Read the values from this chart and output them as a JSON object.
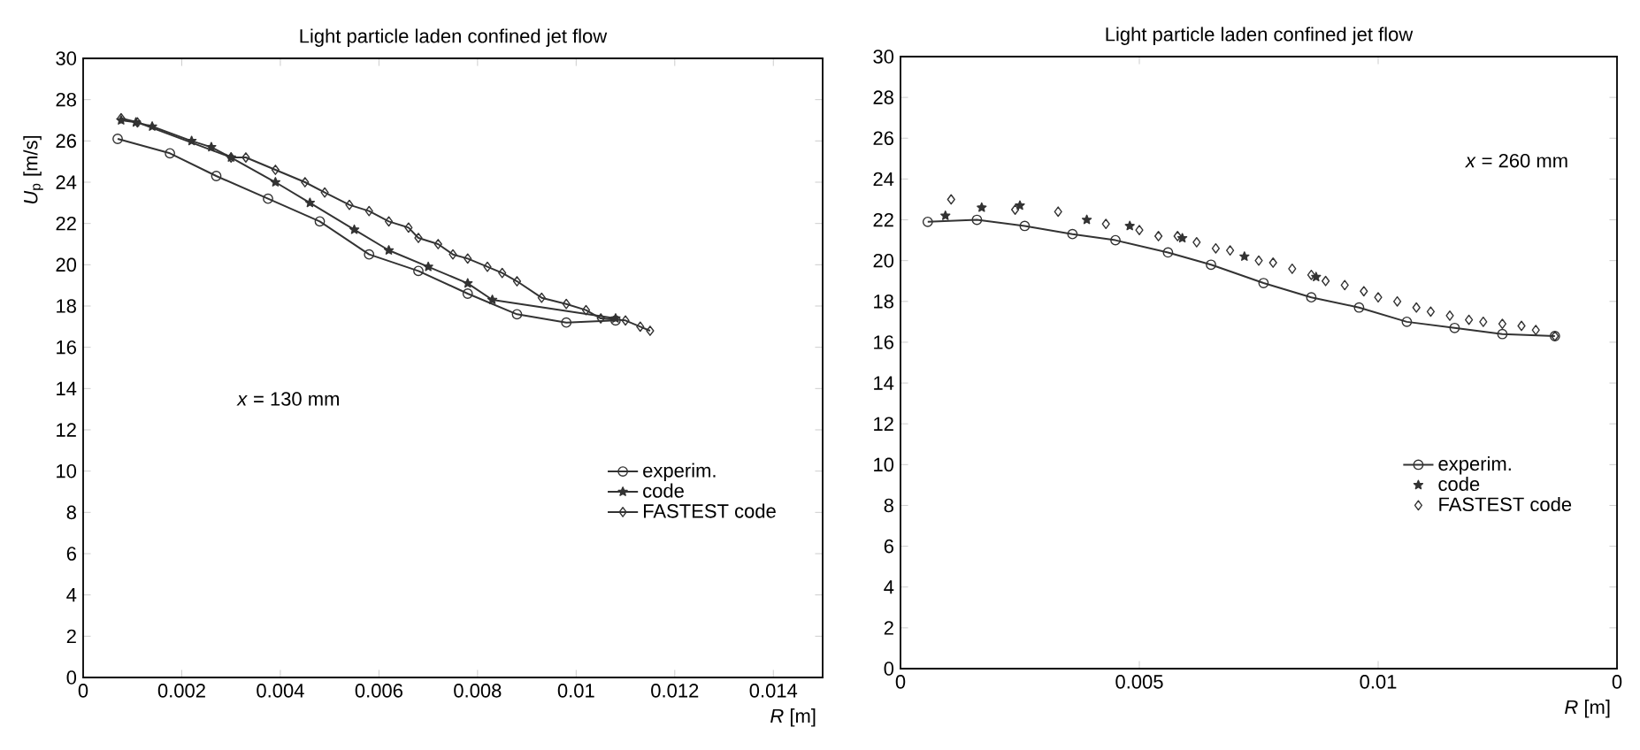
{
  "chart_data": [
    {
      "type": "line",
      "title": "Light particle laden confined jet flow",
      "xlabel": "*R* [m]",
      "ylabel": "*U*$_{p}$ [m/s]",
      "annotations": [
        "*x* = 130 mm"
      ],
      "xlim": [
        0,
        0.015
      ],
      "ylim": [
        0,
        30
      ],
      "xticks": [
        0,
        0.002,
        0.004,
        0.006,
        0.008,
        0.01,
        0.012,
        0.014
      ],
      "yticks": [
        0,
        2,
        4,
        6,
        8,
        10,
        12,
        14,
        16,
        18,
        20,
        22,
        24,
        26,
        28,
        30
      ],
      "legend": "center right",
      "series": [
        {
          "name": "experim.",
          "color": "#333333",
          "marker": "circle",
          "x": [
            0.0007,
            0.00176,
            0.0027,
            0.00375,
            0.0048,
            0.0058,
            0.0068,
            0.0078,
            0.0088,
            0.0098,
            0.0108
          ],
          "values": [
            26.1,
            25.4,
            24.3,
            23.2,
            22.1,
            20.5,
            19.7,
            18.6,
            17.6,
            17.2,
            17.3
          ]
        },
        {
          "name": "code",
          "color": "#333333",
          "marker": "star",
          "x": [
            0.00077,
            0.00107,
            0.0014,
            0.0022,
            0.0026,
            0.003,
            0.0039,
            0.0046,
            0.0055,
            0.0062,
            0.007,
            0.0078,
            0.0083,
            0.0108
          ],
          "values": [
            27.0,
            26.9,
            26.7,
            26.0,
            25.7,
            25.2,
            24.0,
            23.0,
            21.7,
            20.7,
            19.9,
            19.1,
            18.3,
            17.4
          ]
        },
        {
          "name": "FASTEST code",
          "color": "#333333",
          "marker": "diamond",
          "x": [
            0.00077,
            0.0011,
            0.003,
            0.0033,
            0.0039,
            0.0045,
            0.0049,
            0.0054,
            0.0058,
            0.0062,
            0.0066,
            0.0068,
            0.0072,
            0.0075,
            0.0078,
            0.0082,
            0.0085,
            0.0088,
            0.0093,
            0.0098,
            0.0102,
            0.0105,
            0.011,
            0.0113,
            0.0115
          ],
          "values": [
            27.1,
            26.9,
            25.2,
            25.2,
            24.6,
            24.0,
            23.5,
            22.9,
            22.6,
            22.1,
            21.8,
            21.3,
            21.0,
            20.5,
            20.3,
            19.9,
            19.6,
            19.2,
            18.4,
            18.1,
            17.8,
            17.4,
            17.3,
            17.0,
            16.8
          ]
        }
      ]
    },
    {
      "type": "line",
      "title": "Light particle laden confined jet flow",
      "xlabel": "*R* [m]",
      "annotations": [
        "*x* = 260 mm"
      ],
      "xlim": [
        0,
        0.015
      ],
      "ylim": [
        0,
        30
      ],
      "xticks": [
        0,
        0.005,
        0.01,
        {
          "value": 0.015,
          "label": "0"
        }
      ],
      "yticks": [
        0,
        2,
        4,
        6,
        8,
        10,
        12,
        14,
        16,
        18,
        20,
        22,
        24,
        26,
        28,
        30
      ],
      "legend": "center right",
      "series": [
        {
          "name": "experim.",
          "color": "#333333",
          "marker": "circle",
          "x": [
            0.00057,
            0.0016,
            0.0026,
            0.0036,
            0.0045,
            0.0056,
            0.0065,
            0.0076,
            0.0086,
            0.0096,
            0.0106,
            0.0116,
            0.0126,
            0.0137
          ],
          "values": [
            21.9,
            22.0,
            21.7,
            21.3,
            21.0,
            20.4,
            19.8,
            18.9,
            18.2,
            17.7,
            17.0,
            16.7,
            16.4,
            16.3
          ]
        },
        {
          "type": "scatter",
          "name": "code",
          "color": "#333333",
          "marker": "star",
          "x": [
            0.00094,
            0.0017,
            0.0025,
            0.0039,
            0.0048,
            0.0059,
            0.0072,
            0.0087
          ],
          "values": [
            22.2,
            22.6,
            22.7,
            22.0,
            21.7,
            21.1,
            20.2,
            19.2
          ]
        },
        {
          "type": "scatter",
          "name": "FASTEST code",
          "color": "#333333",
          "marker": "diamond",
          "x": [
            0.00106,
            0.0024,
            0.0033,
            0.0043,
            0.005,
            0.0054,
            0.0058,
            0.0062,
            0.0066,
            0.0069,
            0.0075,
            0.0078,
            0.0082,
            0.0086,
            0.0089,
            0.0093,
            0.0097,
            0.01,
            0.0104,
            0.0108,
            0.0111,
            0.0115,
            0.0119,
            0.0122,
            0.0126,
            0.013,
            0.0133,
            0.0137
          ],
          "values": [
            23.0,
            22.5,
            22.4,
            21.8,
            21.5,
            21.2,
            21.2,
            20.9,
            20.6,
            20.5,
            20.0,
            19.9,
            19.6,
            19.3,
            19.0,
            18.8,
            18.5,
            18.2,
            18.0,
            17.7,
            17.5,
            17.3,
            17.1,
            17.0,
            16.9,
            16.8,
            16.6,
            16.3
          ]
        }
      ]
    }
  ]
}
